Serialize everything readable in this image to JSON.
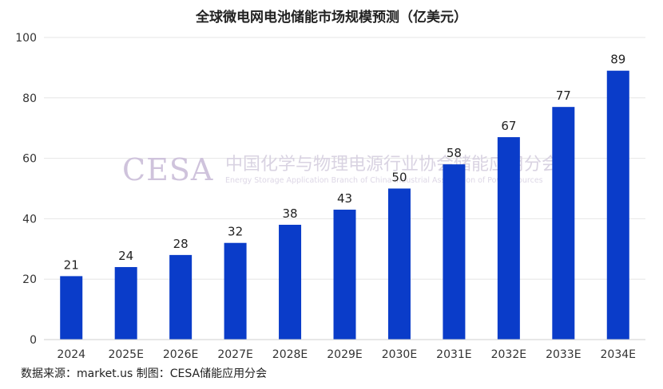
{
  "chart_data": {
    "type": "bar",
    "title": "全球微电网电池储能市场规模预测（亿美元）",
    "categories": [
      "2024",
      "2025E",
      "2026E",
      "2027E",
      "2028E",
      "2029E",
      "2030E",
      "2031E",
      "2032E",
      "2033E",
      "2034E"
    ],
    "values": [
      21,
      24,
      28,
      32,
      38,
      43,
      50,
      58,
      67,
      77,
      89
    ],
    "ylim": [
      0,
      100
    ],
    "yticks": [
      0,
      20,
      40,
      60,
      80,
      100
    ],
    "xlabel": "",
    "ylabel": "",
    "grid": true,
    "bar_color": "#0a3cc9"
  },
  "watermark": {
    "logo": "CESA",
    "cn": "中国化学与物理电源行业协会储能应用分会",
    "en": "Energy Storage Application Branch of China Industrial Association of Power Sources"
  },
  "source": "数据来源：market.us   制图：CESA储能应用分会"
}
